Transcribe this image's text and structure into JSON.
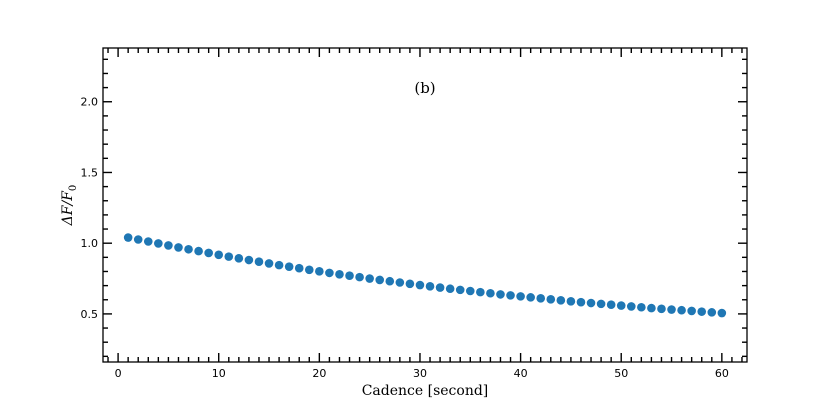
{
  "chart_data": {
    "type": "scatter",
    "panel_label": "(b)",
    "xlabel": "Cadence [second]",
    "ylabel_main": "ΔF/F",
    "ylabel_sub": "0",
    "xlim": [
      -1.5,
      62.5
    ],
    "ylim": [
      0.16,
      2.38
    ],
    "xticks": [
      0,
      10,
      20,
      30,
      40,
      50,
      60
    ],
    "xtick_labels": [
      "0",
      "10",
      "20",
      "30",
      "40",
      "50",
      "60"
    ],
    "yticks": [
      0.5,
      1.0,
      1.5,
      2.0
    ],
    "ytick_labels": [
      "0.5",
      "1.0",
      "1.5",
      "2.0"
    ],
    "x_minor_step": 1,
    "y_minor_step": 0.1,
    "marker_color": "#1f77b4",
    "grid": false,
    "series": [
      {
        "x": [
          1,
          2,
          3,
          4,
          5,
          6,
          7,
          8,
          9,
          10,
          11,
          12,
          13,
          14,
          15,
          16,
          17,
          18,
          19,
          20,
          21,
          22,
          23,
          24,
          25,
          26,
          27,
          28,
          29,
          30,
          31,
          32,
          33,
          34,
          35,
          36,
          37,
          38,
          39,
          40,
          41,
          42,
          43,
          44,
          45,
          46,
          47,
          48,
          49,
          50,
          51,
          52,
          53,
          54,
          55,
          56,
          57,
          58,
          59,
          60
        ],
        "y": [
          1.04,
          1.026,
          1.012,
          0.998,
          0.984,
          0.97,
          0.957,
          0.944,
          0.931,
          0.918,
          0.905,
          0.893,
          0.881,
          0.869,
          0.857,
          0.845,
          0.834,
          0.823,
          0.812,
          0.801,
          0.79,
          0.78,
          0.77,
          0.76,
          0.75,
          0.74,
          0.731,
          0.722,
          0.713,
          0.704,
          0.695,
          0.686,
          0.678,
          0.67,
          0.662,
          0.654,
          0.646,
          0.638,
          0.631,
          0.624,
          0.617,
          0.61,
          0.603,
          0.596,
          0.589,
          0.583,
          0.577,
          0.571,
          0.565,
          0.559,
          0.553,
          0.547,
          0.541,
          0.536,
          0.531,
          0.526,
          0.521,
          0.516,
          0.511,
          0.506
        ]
      }
    ]
  }
}
